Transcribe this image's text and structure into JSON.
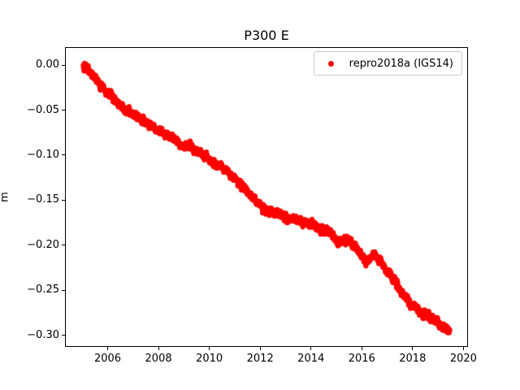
{
  "chart_data": {
    "type": "scatter",
    "title": "P300 E",
    "xlabel": "",
    "ylabel": "m",
    "grid": false,
    "legend": {
      "label": "repro2018a (IGS14)",
      "position": "upper right",
      "marker_color": "#ff0000",
      "border_color": "#cccccc"
    },
    "xlim": [
      2004.32,
      2020.18
    ],
    "ylim": [
      -0.313,
      0.02
    ],
    "xticks": {
      "values": [
        2006,
        2008,
        2010,
        2012,
        2014,
        2016,
        2018,
        2020
      ],
      "labels": [
        "2006",
        "2008",
        "2010",
        "2012",
        "2014",
        "2016",
        "2018",
        "2020"
      ]
    },
    "yticks": {
      "values": [
        0.0,
        -0.05,
        -0.1,
        -0.15,
        -0.2,
        -0.25,
        -0.3
      ],
      "labels": [
        "0.00",
        "−0.05",
        "−0.10",
        "−0.15",
        "−0.20",
        "−0.25",
        "−0.30"
      ]
    },
    "marker": {
      "shape": "dot",
      "color": "#ff0000",
      "radius_px": 3
    },
    "series": [
      {
        "name": "repro2018a (IGS14)",
        "color": "#ff0000",
        "sampling": "daily",
        "x_start": 2005.04,
        "x_end": 2019.46,
        "anchors": [
          [
            2005.04,
            0.001
          ],
          [
            2005.2,
            -0.004
          ],
          [
            2005.5,
            -0.015
          ],
          [
            2005.9,
            -0.027
          ],
          [
            2006.25,
            -0.038
          ],
          [
            2006.6,
            -0.048
          ],
          [
            2007.0,
            -0.056
          ],
          [
            2007.45,
            -0.062
          ],
          [
            2007.8,
            -0.07
          ],
          [
            2008.1,
            -0.074
          ],
          [
            2008.45,
            -0.079
          ],
          [
            2008.95,
            -0.09
          ],
          [
            2009.2,
            -0.089
          ],
          [
            2009.7,
            -0.098
          ],
          [
            2010.1,
            -0.107
          ],
          [
            2010.5,
            -0.113
          ],
          [
            2010.85,
            -0.122
          ],
          [
            2011.15,
            -0.131
          ],
          [
            2011.5,
            -0.141
          ],
          [
            2011.8,
            -0.15
          ],
          [
            2012.1,
            -0.158
          ],
          [
            2012.45,
            -0.163
          ],
          [
            2012.8,
            -0.166
          ],
          [
            2013.1,
            -0.17
          ],
          [
            2013.45,
            -0.172
          ],
          [
            2013.75,
            -0.175
          ],
          [
            2014.05,
            -0.178
          ],
          [
            2014.4,
            -0.181
          ],
          [
            2014.8,
            -0.186
          ],
          [
            2015.1,
            -0.199
          ],
          [
            2015.45,
            -0.193
          ],
          [
            2015.75,
            -0.202
          ],
          [
            2016.1,
            -0.216
          ],
          [
            2016.3,
            -0.217
          ],
          [
            2016.5,
            -0.21
          ],
          [
            2016.63,
            -0.216
          ],
          [
            2016.95,
            -0.227
          ],
          [
            2017.2,
            -0.237
          ],
          [
            2017.45,
            -0.246
          ],
          [
            2017.66,
            -0.255
          ],
          [
            2017.85,
            -0.263
          ],
          [
            2018.1,
            -0.269
          ],
          [
            2018.25,
            -0.273
          ],
          [
            2018.5,
            -0.277
          ],
          [
            2018.8,
            -0.282
          ],
          [
            2019.05,
            -0.288
          ],
          [
            2019.3,
            -0.293
          ],
          [
            2019.46,
            -0.295
          ]
        ]
      }
    ],
    "colors": {
      "background": "#ffffff",
      "spines": "#000000",
      "text": "#000000",
      "data": "#ff0000"
    }
  }
}
